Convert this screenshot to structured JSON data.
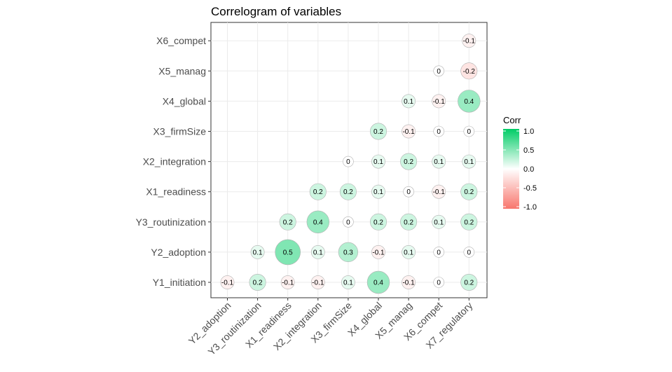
{
  "chart_data": {
    "type": "heatmap",
    "title": "Correlogram of variables",
    "x_categories": [
      "Y2_adoption",
      "Y3_routinization",
      "X1_readiness",
      "X2_integration",
      "X3_firmSize",
      "X4_global",
      "X5_manag",
      "X6_compet",
      "X7_regulatory"
    ],
    "y_categories": [
      "Y1_initiation",
      "Y2_adoption",
      "Y3_routinization",
      "X1_readiness",
      "X2_integration",
      "X3_firmSize",
      "X4_global",
      "X5_manag",
      "X6_compet"
    ],
    "cells": [
      {
        "x": "Y2_adoption",
        "y": "Y1_initiation",
        "value": -0.1,
        "label": "-0.1"
      },
      {
        "x": "Y3_routinization",
        "y": "Y1_initiation",
        "value": 0.2,
        "label": "0.2"
      },
      {
        "x": "X1_readiness",
        "y": "Y1_initiation",
        "value": -0.1,
        "label": "-0.1"
      },
      {
        "x": "X2_integration",
        "y": "Y1_initiation",
        "value": -0.1,
        "label": "-0.1"
      },
      {
        "x": "X3_firmSize",
        "y": "Y1_initiation",
        "value": 0.1,
        "label": "0.1"
      },
      {
        "x": "X4_global",
        "y": "Y1_initiation",
        "value": 0.4,
        "label": "0.4"
      },
      {
        "x": "X5_manag",
        "y": "Y1_initiation",
        "value": -0.1,
        "label": "-0.1"
      },
      {
        "x": "X6_compet",
        "y": "Y1_initiation",
        "value": 0,
        "label": "0"
      },
      {
        "x": "X7_regulatory",
        "y": "Y1_initiation",
        "value": 0.2,
        "label": "0.2"
      },
      {
        "x": "Y3_routinization",
        "y": "Y2_adoption",
        "value": 0.1,
        "label": "0.1"
      },
      {
        "x": "X1_readiness",
        "y": "Y2_adoption",
        "value": 0.5,
        "label": "0.5"
      },
      {
        "x": "X2_integration",
        "y": "Y2_adoption",
        "value": 0.1,
        "label": "0.1"
      },
      {
        "x": "X3_firmSize",
        "y": "Y2_adoption",
        "value": 0.3,
        "label": "0.3"
      },
      {
        "x": "X4_global",
        "y": "Y2_adoption",
        "value": -0.1,
        "label": "-0.1"
      },
      {
        "x": "X5_manag",
        "y": "Y2_adoption",
        "value": 0.1,
        "label": "0.1"
      },
      {
        "x": "X6_compet",
        "y": "Y2_adoption",
        "value": 0,
        "label": "0"
      },
      {
        "x": "X7_regulatory",
        "y": "Y2_adoption",
        "value": 0,
        "label": "0"
      },
      {
        "x": "X1_readiness",
        "y": "Y3_routinization",
        "value": 0.2,
        "label": "0.2"
      },
      {
        "x": "X2_integration",
        "y": "Y3_routinization",
        "value": 0.4,
        "label": "0.4"
      },
      {
        "x": "X3_firmSize",
        "y": "Y3_routinization",
        "value": 0,
        "label": "0"
      },
      {
        "x": "X4_global",
        "y": "Y3_routinization",
        "value": 0.2,
        "label": "0.2"
      },
      {
        "x": "X5_manag",
        "y": "Y3_routinization",
        "value": 0.2,
        "label": "0.2"
      },
      {
        "x": "X6_compet",
        "y": "Y3_routinization",
        "value": 0.1,
        "label": "0.1"
      },
      {
        "x": "X7_regulatory",
        "y": "Y3_routinization",
        "value": 0.2,
        "label": "0.2"
      },
      {
        "x": "X2_integration",
        "y": "X1_readiness",
        "value": 0.2,
        "label": "0.2"
      },
      {
        "x": "X3_firmSize",
        "y": "X1_readiness",
        "value": 0.2,
        "label": "0.2"
      },
      {
        "x": "X4_global",
        "y": "X1_readiness",
        "value": 0.1,
        "label": "0.1"
      },
      {
        "x": "X5_manag",
        "y": "X1_readiness",
        "value": 0,
        "label": "0"
      },
      {
        "x": "X6_compet",
        "y": "X1_readiness",
        "value": -0.1,
        "label": "-0.1"
      },
      {
        "x": "X7_regulatory",
        "y": "X1_readiness",
        "value": 0.2,
        "label": "0.2"
      },
      {
        "x": "X3_firmSize",
        "y": "X2_integration",
        "value": 0,
        "label": "0"
      },
      {
        "x": "X4_global",
        "y": "X2_integration",
        "value": 0.1,
        "label": "0.1"
      },
      {
        "x": "X5_manag",
        "y": "X2_integration",
        "value": 0.2,
        "label": "0.2"
      },
      {
        "x": "X6_compet",
        "y": "X2_integration",
        "value": 0.1,
        "label": "0.1"
      },
      {
        "x": "X7_regulatory",
        "y": "X2_integration",
        "value": 0.1,
        "label": "0.1"
      },
      {
        "x": "X4_global",
        "y": "X3_firmSize",
        "value": 0.2,
        "label": "0.2"
      },
      {
        "x": "X5_manag",
        "y": "X3_firmSize",
        "value": -0.1,
        "label": "-0.1"
      },
      {
        "x": "X6_compet",
        "y": "X3_firmSize",
        "value": 0,
        "label": "0"
      },
      {
        "x": "X7_regulatory",
        "y": "X3_firmSize",
        "value": 0,
        "label": "0"
      },
      {
        "x": "X5_manag",
        "y": "X4_global",
        "value": 0.1,
        "label": "0.1"
      },
      {
        "x": "X6_compet",
        "y": "X4_global",
        "value": -0.1,
        "label": "-0.1"
      },
      {
        "x": "X7_regulatory",
        "y": "X4_global",
        "value": 0.4,
        "label": "0.4"
      },
      {
        "x": "X6_compet",
        "y": "X5_manag",
        "value": 0,
        "label": "0"
      },
      {
        "x": "X7_regulatory",
        "y": "X5_manag",
        "value": -0.2,
        "label": "-0.2"
      },
      {
        "x": "X7_regulatory",
        "y": "X6_compet",
        "value": -0.1,
        "label": "-0.1"
      }
    ],
    "legend": {
      "title": "Corr",
      "position": "right",
      "ticks": [
        "1.0",
        "0.5",
        "0.0",
        "-0.5",
        "-1.0"
      ],
      "tick_values": [
        1.0,
        0.5,
        0.0,
        -0.5,
        -1.0
      ],
      "range": [
        -1.0,
        1.0
      ],
      "colors": {
        "high": "#00cc66",
        "mid": "#ffffff",
        "low": "#f8766d"
      }
    },
    "grid": true
  }
}
